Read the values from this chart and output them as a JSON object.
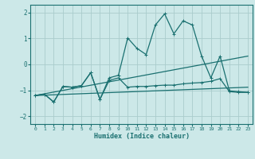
{
  "xlabel": "Humidex (Indice chaleur)",
  "bg_color": "#cce8e8",
  "grid_color": "#aacccc",
  "line_color": "#1a7070",
  "xlim": [
    -0.5,
    23.5
  ],
  "ylim": [
    -2.3,
    2.3
  ],
  "xticks": [
    0,
    1,
    2,
    3,
    4,
    5,
    6,
    7,
    8,
    9,
    10,
    11,
    12,
    13,
    14,
    15,
    16,
    17,
    18,
    19,
    20,
    21,
    22,
    23
  ],
  "yticks": [
    -2,
    -1,
    0,
    1,
    2
  ],
  "line1_x": [
    0,
    1,
    2,
    3,
    4,
    5,
    6,
    7,
    8,
    9,
    10,
    11,
    12,
    13,
    14,
    15,
    16,
    17,
    18,
    19,
    20,
    21,
    22,
    23
  ],
  "line1_y": [
    -1.2,
    -1.15,
    -1.45,
    -0.85,
    -0.88,
    -0.82,
    -0.32,
    -1.35,
    -0.52,
    -0.42,
    1.02,
    0.62,
    0.38,
    1.52,
    1.95,
    1.18,
    1.68,
    1.52,
    0.32,
    -0.52,
    0.32,
    -1.02,
    -1.05,
    -1.08
  ],
  "line2_x": [
    0,
    1,
    2,
    3,
    4,
    5,
    6,
    7,
    8,
    9,
    10,
    11,
    12,
    13,
    14,
    15,
    16,
    17,
    18,
    19,
    20,
    21,
    22,
    23
  ],
  "line2_y": [
    -1.2,
    -1.15,
    -1.45,
    -0.85,
    -0.88,
    -0.82,
    -0.32,
    -1.35,
    -0.62,
    -0.52,
    -0.88,
    -0.85,
    -0.85,
    -0.82,
    -0.8,
    -0.8,
    -0.75,
    -0.72,
    -0.7,
    -0.65,
    -0.55,
    -1.05,
    -1.08,
    -1.08
  ],
  "line3_x": [
    0,
    23
  ],
  "line3_y": [
    -1.2,
    0.32
  ],
  "line4_x": [
    0,
    23
  ],
  "line4_y": [
    -1.2,
    -0.88
  ]
}
